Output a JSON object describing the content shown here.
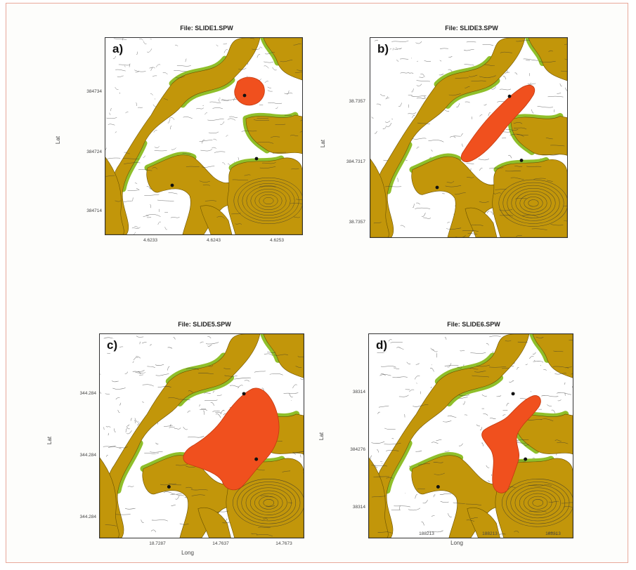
{
  "panels": [
    {
      "title": "File: SLIDE1.SPW",
      "letter": "a)",
      "y_label": "Lat",
      "y_ticks": [
        "384734",
        "384724",
        "384714"
      ],
      "x_ticks": [
        "4.6233",
        "4.6243",
        "4.6253"
      ],
      "x_label": ""
    },
    {
      "title": "File: SLIDE3.SPW",
      "letter": "b)",
      "y_label": "Lat",
      "y_ticks": [
        "38.7357",
        "384.7317",
        "38.7357"
      ],
      "x_ticks": [
        "",
        "",
        ""
      ],
      "x_label": ""
    },
    {
      "title": "File: SLIDE5.SPW",
      "letter": "c)",
      "y_label": "Lat",
      "y_ticks": [
        "344.284",
        "344.284",
        "344.284"
      ],
      "x_ticks": [
        "18.7287",
        "14.7637",
        "14.7673"
      ],
      "x_label": "Long"
    },
    {
      "title": "File: SLIDE6.SPW",
      "letter": "d)",
      "y_label": "Lat",
      "y_ticks": [
        "38314",
        "384276",
        "38314"
      ],
      "x_ticks": [
        "188213",
        "188213",
        "188213"
      ],
      "x_label": "Long"
    }
  ],
  "colors": {
    "terrain_ochre": "#c2960a",
    "terrain_green": "#8fbf2a",
    "slide_red": "#f0501e",
    "contour": "#333333"
  }
}
